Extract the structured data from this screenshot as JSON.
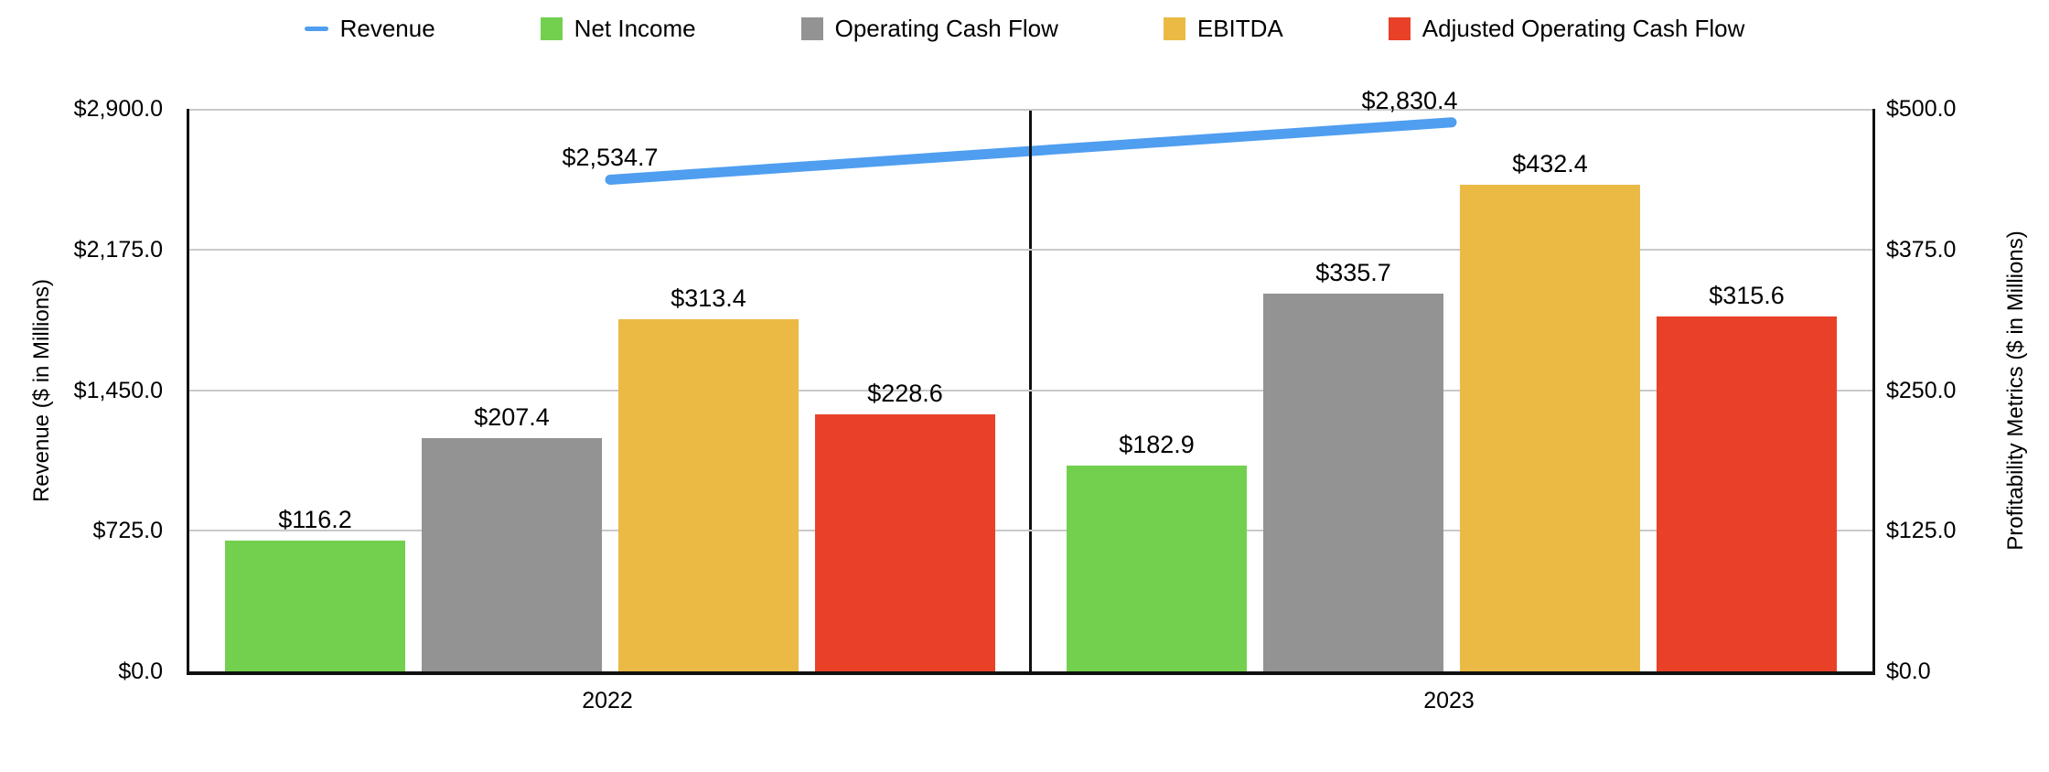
{
  "chart_data": {
    "type": "bar",
    "subtype": "grouped-bar-with-line-overlay",
    "categories": [
      "2022",
      "2023"
    ],
    "bar_series": [
      {
        "name": "Net Income",
        "color": "#73D04E",
        "values": [
          116.2,
          182.9
        ],
        "labels": [
          "$116.2",
          "$182.9"
        ]
      },
      {
        "name": "Operating Cash Flow",
        "color": "#939393",
        "values": [
          207.4,
          335.7
        ],
        "labels": [
          "$207.4",
          "$335.7"
        ]
      },
      {
        "name": "EBITDA",
        "color": "#EBBA44",
        "values": [
          313.4,
          432.4
        ],
        "labels": [
          "$313.4",
          "$432.4"
        ]
      },
      {
        "name": "Adjusted Operating Cash Flow",
        "color": "#E84128",
        "values": [
          228.6,
          315.6
        ],
        "labels": [
          "$228.6",
          "$315.6"
        ]
      }
    ],
    "line_series": [
      {
        "name": "Revenue",
        "color": "#4F9EF0",
        "values": [
          2534.7,
          2830.4
        ],
        "labels": [
          "$2,534.7",
          "$2,830.4"
        ]
      }
    ],
    "left_axis": {
      "title": "Revenue ($ in Millions)",
      "min": 0,
      "max": 2900,
      "ticks": [
        "$2,900.0",
        "$2,175.0",
        "$1,450.0",
        "$725.0",
        "$0.0"
      ]
    },
    "right_axis": {
      "title": "Profitability Metrics ($ in Millions)",
      "min": 0,
      "max": 500,
      "ticks": [
        "$500.0",
        "$375.0",
        "$250.0",
        "$125.0",
        "$0.0"
      ]
    },
    "legend": [
      {
        "label": "Revenue",
        "swatch": "line",
        "color": "#4F9EF0"
      },
      {
        "label": "Net Income",
        "swatch": "square",
        "color": "#73D04E"
      },
      {
        "label": "Operating Cash Flow",
        "swatch": "square",
        "color": "#939393"
      },
      {
        "label": "EBITDA",
        "swatch": "square",
        "color": "#EBBA44"
      },
      {
        "label": "Adjusted Operating Cash Flow",
        "swatch": "square",
        "color": "#E84128"
      }
    ],
    "grid": {
      "show_horizontal": true,
      "color": "#C9C9C9"
    },
    "legend_position": "top"
  }
}
